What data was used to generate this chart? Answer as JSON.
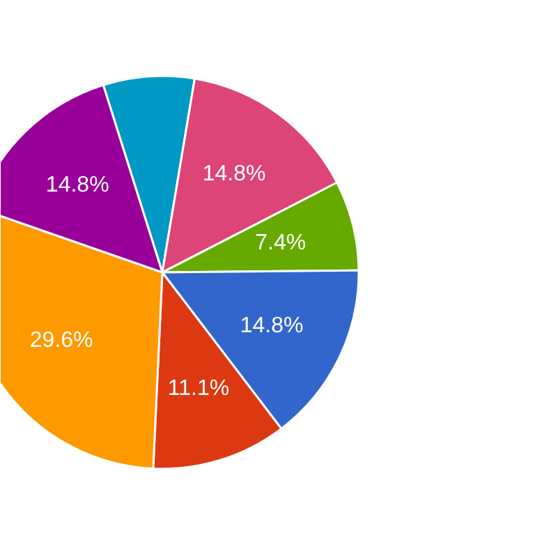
{
  "chart_data": {
    "type": "pie",
    "categories": [
      null,
      null,
      null,
      null,
      null,
      null,
      null
    ],
    "values": [
      7.5,
      14.8,
      7.4,
      14.8,
      11.1,
      29.6,
      14.8
    ],
    "colors": [
      "#0099c6",
      "#dd4477",
      "#66aa00",
      "#3366cc",
      "#dc3912",
      "#ff9900",
      "#990099"
    ],
    "value_labels": [
      null,
      "14.8%",
      "7.4%",
      "14.8%",
      "11.1%",
      "29.6%",
      "14.8%"
    ]
  }
}
